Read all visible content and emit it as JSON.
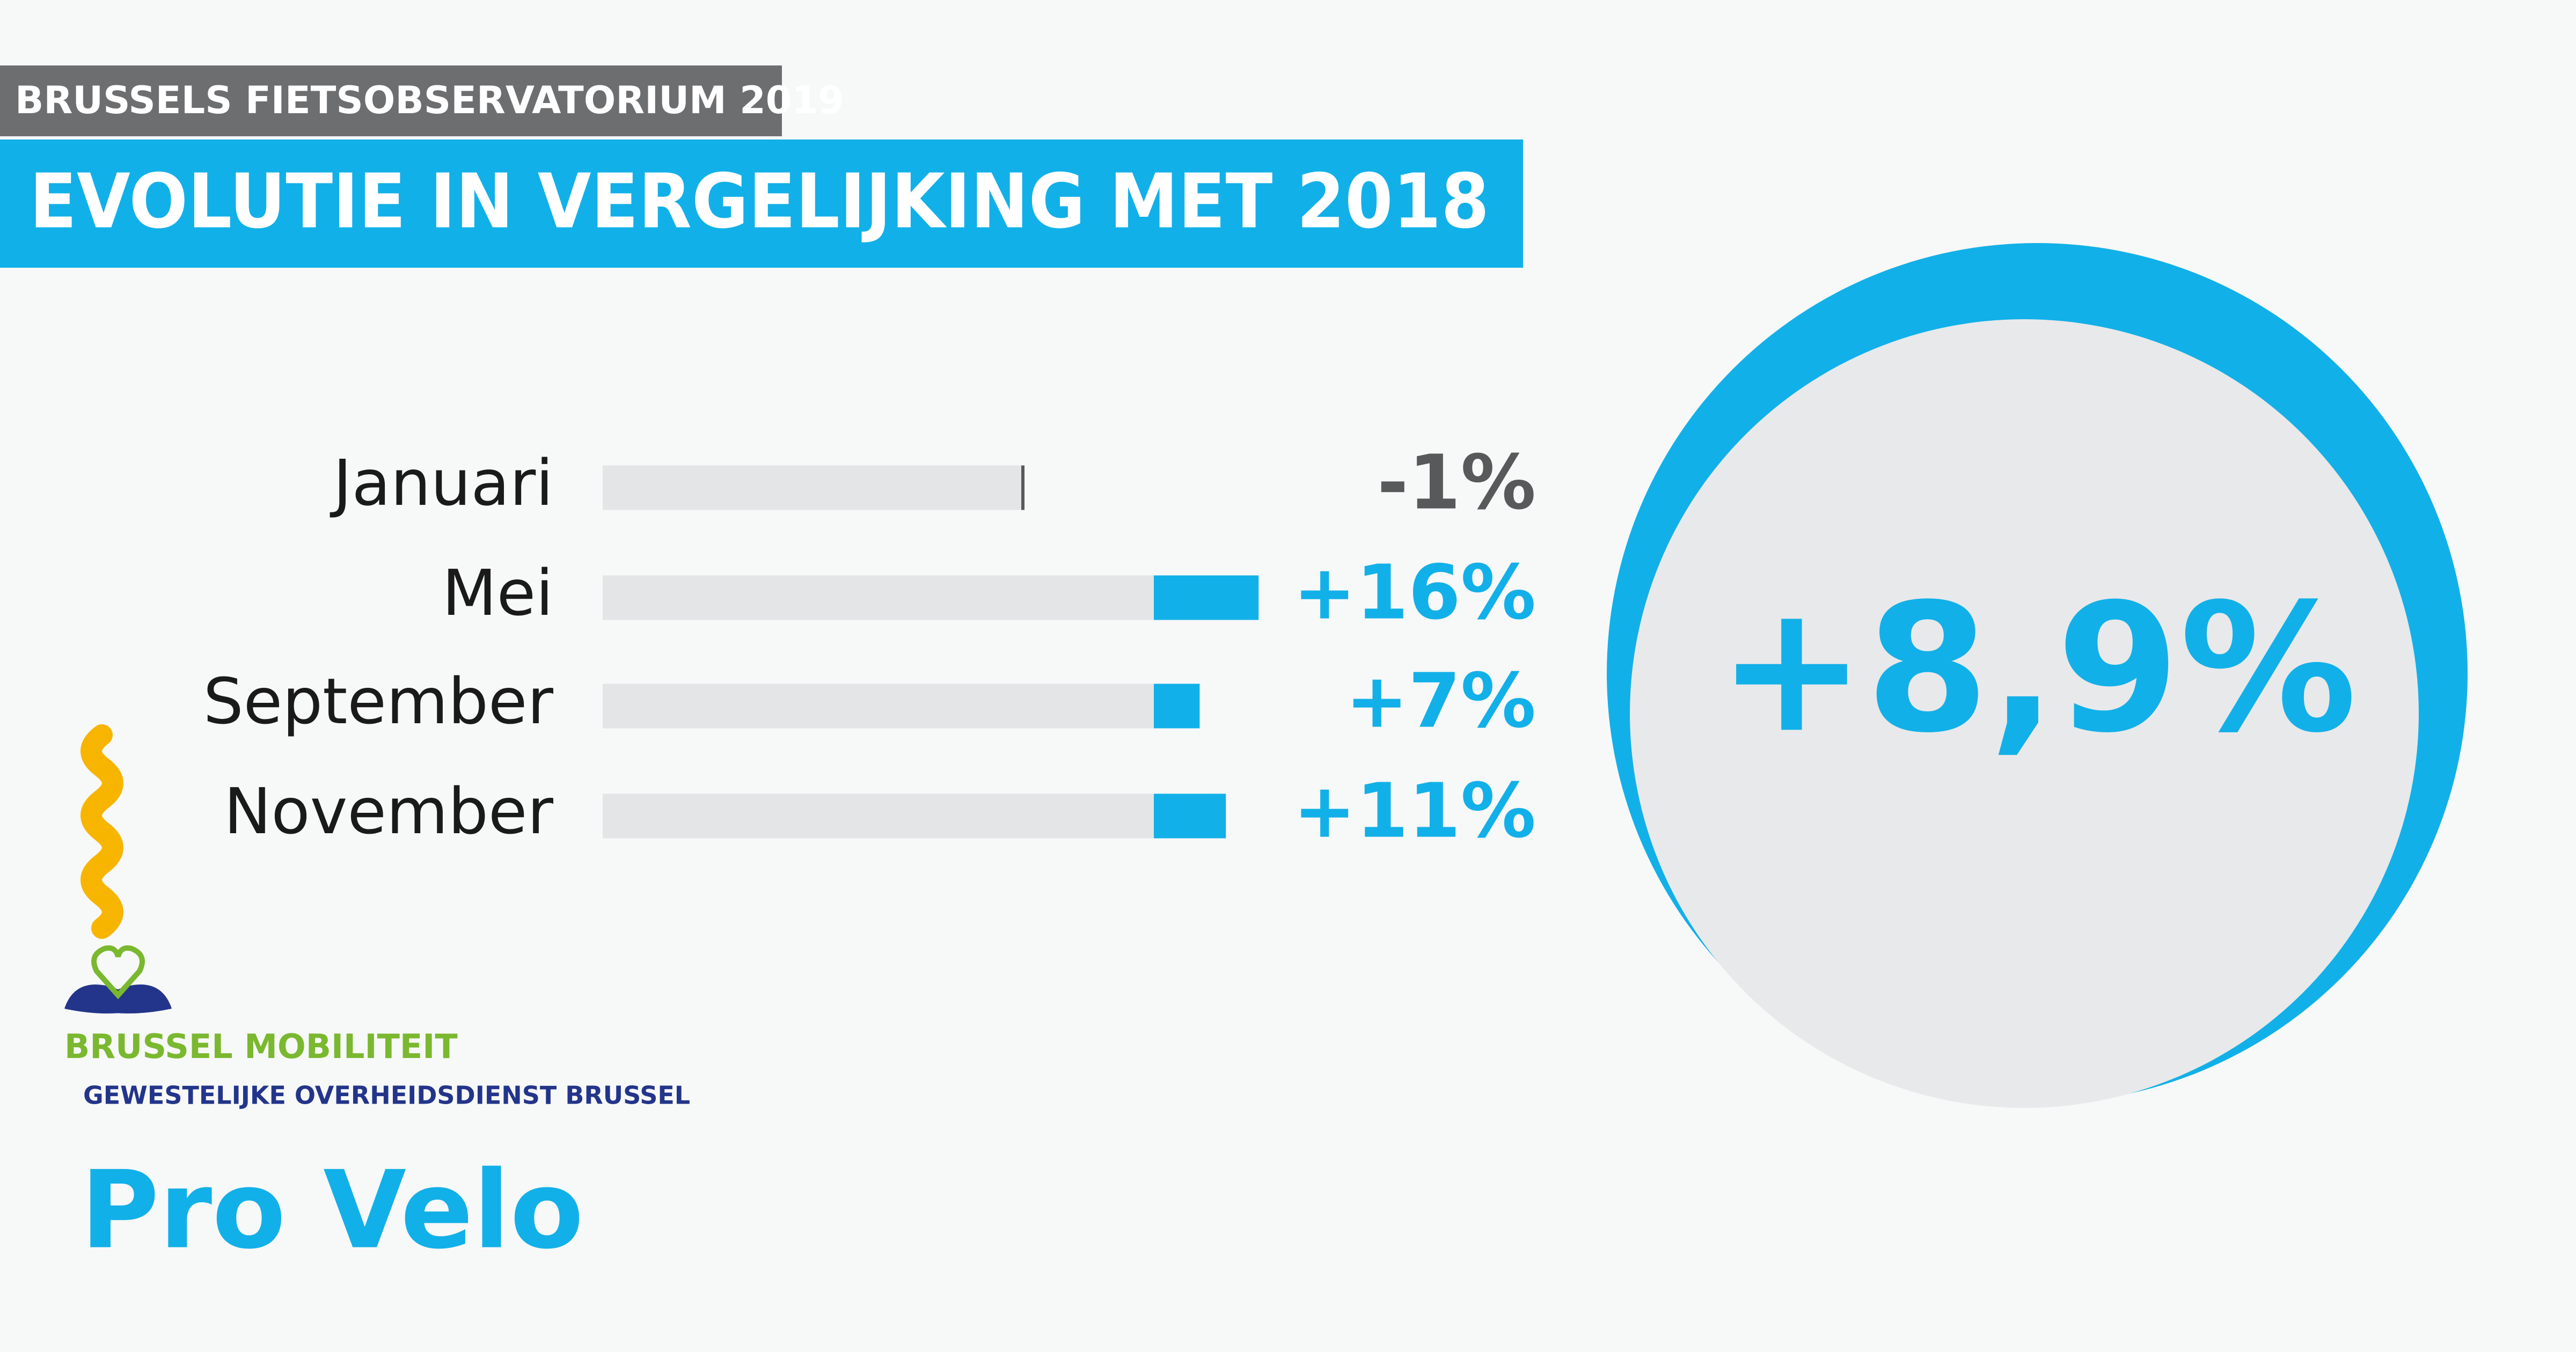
{
  "header": {
    "subtitle": "BRUSSELS FIETSOBSERVATORIUM 2019",
    "title": "EVOLUTIE IN VERGELIJKING MET 2018"
  },
  "chart_data": {
    "type": "bar",
    "categories": [
      "Januari",
      "Mei",
      "September",
      "November"
    ],
    "values": [
      -1,
      16,
      7,
      11
    ],
    "value_labels": [
      "-1%",
      "+16%",
      "+7%",
      "+11%"
    ],
    "color": "#12b0e8"
  },
  "total": {
    "value": 8.9,
    "label": "+8,9%"
  },
  "logos": {
    "brussel_mobiliteit": "BRUSSEL MOBILITEIT",
    "overheidsdienst": "GEWESTELIJKE OVERHEIDSDIENST BRUSSEL",
    "pro_velo": "Pro Velo"
  }
}
